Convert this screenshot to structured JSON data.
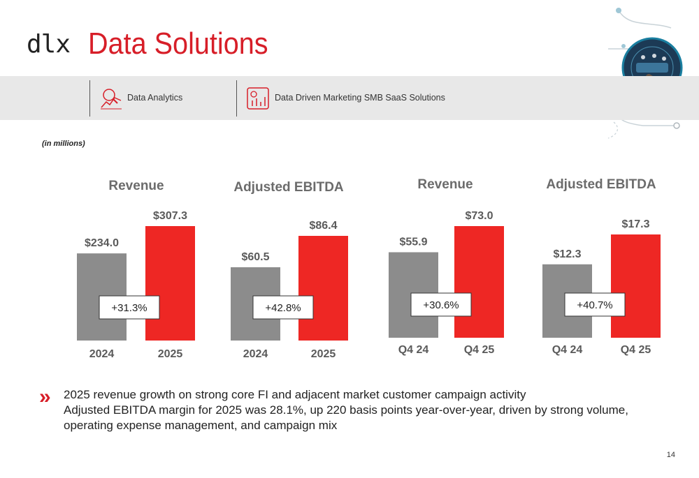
{
  "header": {
    "logo": "dlx",
    "title": "Data Solutions"
  },
  "banner": {
    "items": [
      {
        "label": "Data Analytics",
        "icon": "analytics-chart-icon"
      },
      {
        "label": "Data Driven Marketing SMB SaaS Solutions",
        "icon": "marketing-dashboard-icon"
      }
    ]
  },
  "units_note": "(in millions)",
  "colors": {
    "accent": "#d71e28",
    "bar_prior": "#8c8c8c",
    "bar_current": "#ee2724"
  },
  "chart_data": [
    {
      "type": "bar",
      "title": "Revenue",
      "categories": [
        "2024",
        "2025"
      ],
      "values": [
        234.0,
        307.3
      ],
      "value_labels": [
        "$234.0",
        "$307.3"
      ],
      "ylim": [
        0,
        307.3
      ],
      "change_label": "+31.3%"
    },
    {
      "type": "bar",
      "title": "Adjusted EBITDA",
      "categories": [
        "2024",
        "2025"
      ],
      "values": [
        60.5,
        86.4
      ],
      "value_labels": [
        "$60.5",
        "$86.4"
      ],
      "ylim": [
        0,
        86.4
      ],
      "change_label": "+42.8%"
    },
    {
      "type": "bar",
      "title": "Revenue",
      "categories": [
        "Q4 24",
        "Q4 25"
      ],
      "values": [
        55.9,
        73.0
      ],
      "value_labels": [
        "$55.9",
        "$73.0"
      ],
      "ylim": [
        0,
        73.0
      ],
      "change_label": "+30.6%"
    },
    {
      "type": "bar",
      "title": "Adjusted EBITDA",
      "categories": [
        "Q4 24",
        "Q4 25"
      ],
      "values": [
        12.3,
        17.3
      ],
      "value_labels": [
        "$12.3",
        "$17.3"
      ],
      "ylim": [
        0,
        17.3
      ],
      "change_label": "+40.7%"
    }
  ],
  "bullets": {
    "marker": "»",
    "lines": [
      "2025 revenue growth on strong core FI and adjacent market customer campaign activity",
      "Adjusted EBITDA margin for 2025 was 28.1%, up 220 basis points year-over-year, driven by strong volume, operating expense management, and campaign mix"
    ]
  },
  "page_number": "14"
}
